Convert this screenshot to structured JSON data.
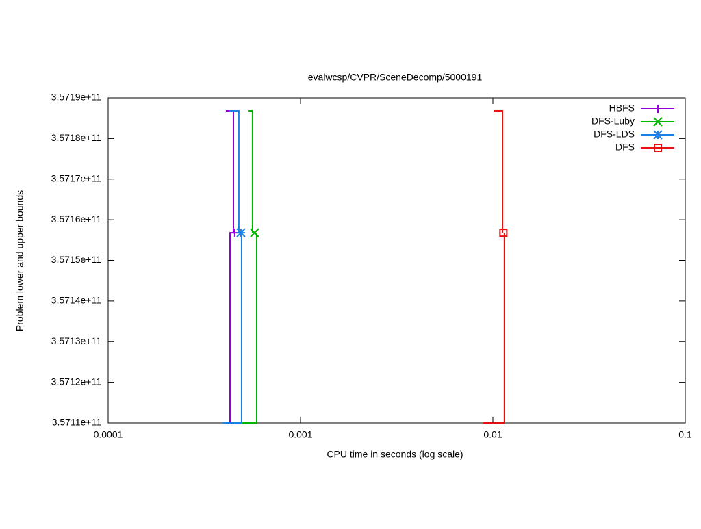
{
  "chart_data": {
    "type": "step",
    "title": "evalwcsp/CVPR/SceneDecomp/5000191",
    "x_label": "CPU time in seconds (log scale)",
    "y_label": "Problem lower and upper bounds",
    "xscale": "log",
    "xlim": [
      0.0001,
      0.1
    ],
    "xticks": [
      0.0001,
      0.001,
      0.01,
      0.1
    ],
    "ylim": [
      357110000000,
      357190000000
    ],
    "yticks": [
      {
        "value": 357110000000,
        "label": "3.5711e+11"
      },
      {
        "value": 357120000000,
        "label": "3.5712e+11"
      },
      {
        "value": 357130000000,
        "label": "3.5713e+11"
      },
      {
        "value": 357140000000,
        "label": "3.5714e+11"
      },
      {
        "value": 357150000000,
        "label": "3.5715e+11"
      },
      {
        "value": 357160000000,
        "label": "3.5716e+11"
      },
      {
        "value": 357170000000,
        "label": "3.5717e+11"
      },
      {
        "value": 357180000000,
        "label": "3.5718e+11"
      },
      {
        "value": 357190000000,
        "label": "3.5719e+11"
      }
    ],
    "legend": "top-right",
    "series": [
      {
        "name": "HBFS",
        "color": "#9400d3",
        "marker": "plus",
        "upper": {
          "x": [
            0.000409,
            0.000448
          ],
          "values": [
            357186800000,
            357156800000
          ]
        },
        "lower": {
          "x": [
            0.000396,
            0.00043,
            0.000455
          ],
          "values": [
            357110000000,
            357156800000,
            357156800000
          ]
        },
        "point": {
          "x": 0.000455,
          "value": 357156800000
        }
      },
      {
        "name": "DFS-Luby",
        "color": "#00b400",
        "marker": "cross",
        "upper": {
          "x": [
            0.000537,
            0.000563
          ],
          "values": [
            357186800000,
            357156800000
          ]
        },
        "lower": {
          "x": [
            0.000396,
            0.000592
          ],
          "values": [
            357110000000,
            357156800000
          ]
        },
        "point": {
          "x": 0.000577,
          "value": 357156800000
        }
      },
      {
        "name": "DFS-LDS",
        "color": "#1a80e6",
        "marker": "star",
        "upper": {
          "x": [
            0.000427,
            0.000478
          ],
          "values": [
            357186800000,
            357156800000
          ]
        },
        "lower": {
          "x": [
            0.000396,
            0.000494
          ],
          "values": [
            357110000000,
            357156800000
          ]
        },
        "point": {
          "x": 0.00049,
          "value": 357156800000
        }
      },
      {
        "name": "DFS",
        "color": "#e51010",
        "marker": "square",
        "upper": {
          "x": [
            0.01009,
            0.01122
          ],
          "values": [
            357186800000,
            357156800000
          ]
        },
        "lower": {
          "x": [
            0.00891,
            0.01148
          ],
          "values": [
            357110000000,
            357156800000
          ]
        },
        "point": {
          "x": 0.01134,
          "value": 357156800000
        }
      }
    ]
  }
}
